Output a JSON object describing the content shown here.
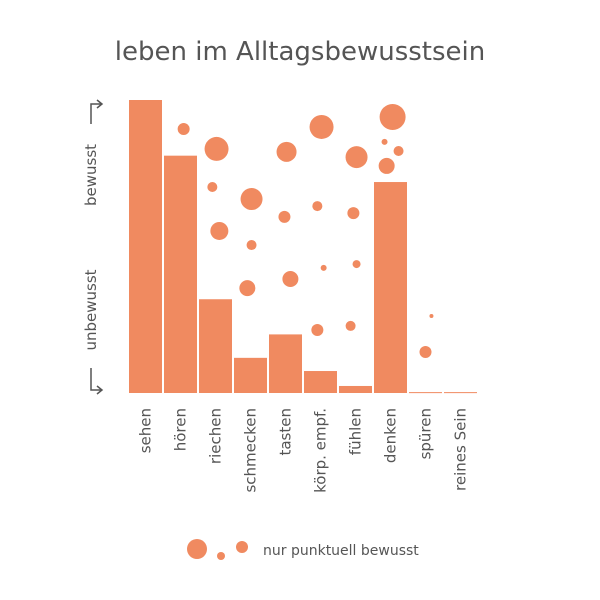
{
  "chart_data": {
    "type": "bar",
    "title": "leben im Alltagsbewusstsein",
    "ylabel_high": "bewusst",
    "ylabel_low": "unbewusst",
    "categories": [
      "sehen",
      "hören",
      "riechen",
      "schmecken",
      "tasten",
      "körp. empf.",
      "fühlen",
      "denken",
      "spüren",
      "reines Sein"
    ],
    "values": [
      100,
      81,
      32,
      12,
      20,
      7.5,
      2.4,
      72,
      0.3,
      0.3
    ],
    "color": "#f08a60",
    "ylim": [
      0,
      100
    ],
    "bubbles": {
      "name": "nur punktuell bewusst",
      "color": "#f08a60",
      "x": [
        1.09,
        2.03,
        1.91,
        2.11,
        3.03,
        3.03,
        2.91,
        4.03,
        3.97,
        4.14,
        5.03,
        4.91,
        5.09,
        4.91,
        6.03,
        5.94,
        6.03,
        5.86,
        7.06,
        6.83,
        7.23,
        6.89,
        8.17,
        8.0
      ],
      "y": [
        90.1,
        83.3,
        70.3,
        55.3,
        66.2,
        50.5,
        35.8,
        82.3,
        60.1,
        38.9,
        90.8,
        63.8,
        42.7,
        21.5,
        80.5,
        61.4,
        44.0,
        22.9,
        94.2,
        85.7,
        82.6,
        77.5,
        26.3,
        14.0
      ],
      "size": [
        6,
        12,
        5,
        9,
        11,
        5,
        8,
        10,
        6,
        8,
        12,
        5,
        3,
        6,
        11,
        6,
        4,
        5,
        13,
        3,
        5,
        8,
        2,
        6
      ]
    }
  }
}
